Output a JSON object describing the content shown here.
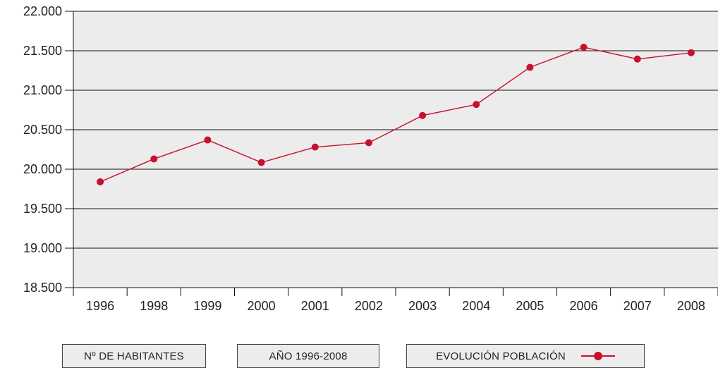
{
  "chart_data": {
    "type": "line",
    "x": [
      "1996",
      "1998",
      "1999",
      "2000",
      "2001",
      "2002",
      "2003",
      "2004",
      "2005",
      "2006",
      "2007",
      "2008"
    ],
    "series": [
      {
        "name": "EVOLUCIÓN POBLACIÓN",
        "values": [
          19840,
          20130,
          20370,
          20085,
          20280,
          20335,
          20680,
          20820,
          21290,
          21545,
          21395,
          21475
        ]
      }
    ],
    "y_ticks": [
      "18.500",
      "19.000",
      "19.500",
      "20.000",
      "20.500",
      "21.000",
      "21.500",
      "22.000"
    ],
    "ylim": [
      18500,
      22000
    ],
    "grid": true,
    "line_color": "#c8102e",
    "plot_background": "#ececec"
  },
  "legend": {
    "habitantes": "Nº DE HABITANTES",
    "anos": "AÑO 1996-2008",
    "evolucion": "EVOLUCIÓN POBLACIÓN"
  }
}
